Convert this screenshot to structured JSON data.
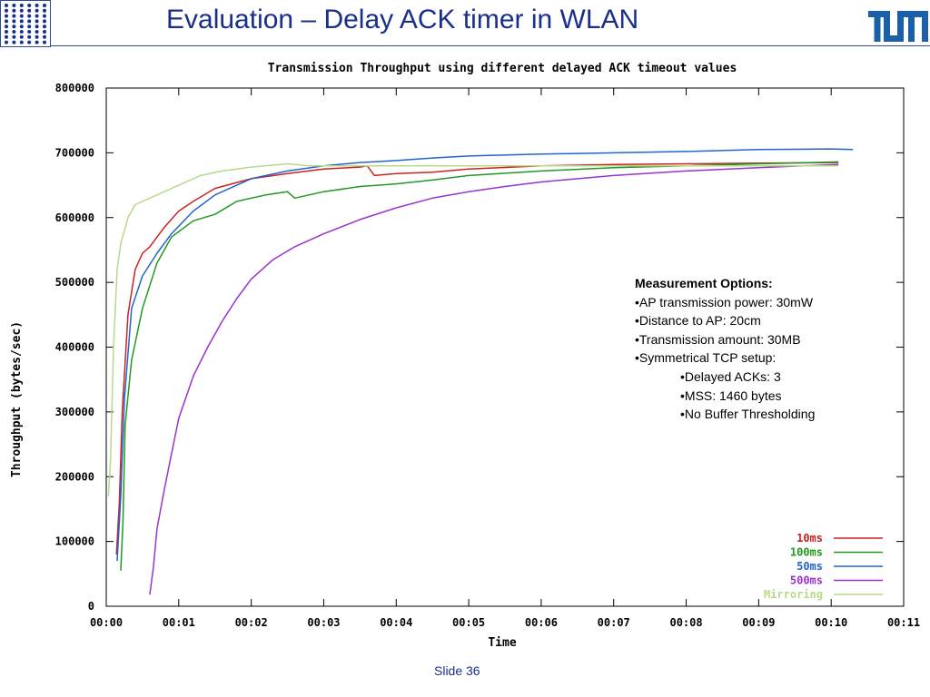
{
  "slide": {
    "title": "Evaluation – Delay ACK timer in WLAN",
    "slide_number": "Slide 36",
    "logo_left_icon": "dot-grid-logo-icon",
    "logo_right_icon": "tum-logo-icon",
    "accent_color": "#1a2f8a"
  },
  "info_box": {
    "heading": "Measurement Options:",
    "items": [
      "•AP transmission power: 30mW",
      "•Distance to AP: 20cm",
      "•Transmission amount: 30MB",
      "•Symmetrical TCP setup:"
    ],
    "subitems": [
      "•Delayed ACKs: 3",
      "•MSS: 1460 bytes",
      "•No Buffer Thresholding"
    ]
  },
  "chart_data": {
    "type": "line",
    "title": "Transmission Throughput using different delayed ACK timeout values",
    "xlabel": "Time",
    "ylabel": "Throughput (bytes/sec)",
    "xlim": [
      0,
      11
    ],
    "ylim": [
      0,
      800000
    ],
    "x_ticks": [
      "00:00",
      "00:01",
      "00:02",
      "00:03",
      "00:04",
      "00:05",
      "00:06",
      "00:07",
      "00:08",
      "00:09",
      "00:10",
      "00:11"
    ],
    "y_ticks": [
      "0",
      "100000",
      "200000",
      "300000",
      "400000",
      "500000",
      "600000",
      "700000",
      "800000"
    ],
    "x_unit": "minutes",
    "legend_position": "bottom-right",
    "grid": false,
    "series": [
      {
        "name": "10ms",
        "color": "#cc2222",
        "points": [
          [
            0.14,
            80000
          ],
          [
            0.18,
            160000
          ],
          [
            0.22,
            300000
          ],
          [
            0.3,
            450000
          ],
          [
            0.4,
            520000
          ],
          [
            0.5,
            545000
          ],
          [
            0.6,
            555000
          ],
          [
            0.8,
            585000
          ],
          [
            1.0,
            610000
          ],
          [
            1.2,
            625000
          ],
          [
            1.5,
            645000
          ],
          [
            2.0,
            660000
          ],
          [
            2.5,
            668000
          ],
          [
            3.0,
            675000
          ],
          [
            3.5,
            678000
          ],
          [
            3.6,
            680000
          ],
          [
            3.7,
            665000
          ],
          [
            4.0,
            668000
          ],
          [
            4.5,
            670000
          ],
          [
            5.0,
            675000
          ],
          [
            6.0,
            680000
          ],
          [
            7.0,
            682000
          ],
          [
            8.0,
            683000
          ],
          [
            9.0,
            684000
          ],
          [
            10.1,
            685000
          ]
        ]
      },
      {
        "name": "100ms",
        "color": "#229922",
        "points": [
          [
            0.2,
            55000
          ],
          [
            0.23,
            130000
          ],
          [
            0.26,
            280000
          ],
          [
            0.35,
            380000
          ],
          [
            0.5,
            460000
          ],
          [
            0.7,
            530000
          ],
          [
            0.9,
            570000
          ],
          [
            1.2,
            595000
          ],
          [
            1.5,
            605000
          ],
          [
            1.8,
            625000
          ],
          [
            2.2,
            635000
          ],
          [
            2.5,
            640000
          ],
          [
            2.6,
            630000
          ],
          [
            3.0,
            640000
          ],
          [
            3.5,
            648000
          ],
          [
            4.0,
            652000
          ],
          [
            4.5,
            658000
          ],
          [
            5.0,
            665000
          ],
          [
            6.0,
            672000
          ],
          [
            7.0,
            677000
          ],
          [
            8.0,
            680000
          ],
          [
            9.0,
            683000
          ],
          [
            10.1,
            686000
          ]
        ]
      },
      {
        "name": "50ms",
        "color": "#2266cc",
        "points": [
          [
            0.15,
            70000
          ],
          [
            0.2,
            170000
          ],
          [
            0.25,
            320000
          ],
          [
            0.35,
            460000
          ],
          [
            0.5,
            510000
          ],
          [
            0.7,
            545000
          ],
          [
            0.9,
            575000
          ],
          [
            1.2,
            610000
          ],
          [
            1.5,
            635000
          ],
          [
            2.0,
            660000
          ],
          [
            2.5,
            672000
          ],
          [
            3.0,
            680000
          ],
          [
            3.5,
            685000
          ],
          [
            4.0,
            688000
          ],
          [
            4.5,
            692000
          ],
          [
            5.0,
            695000
          ],
          [
            6.0,
            698000
          ],
          [
            7.0,
            700000
          ],
          [
            8.0,
            702000
          ],
          [
            9.0,
            705000
          ],
          [
            10.0,
            706000
          ],
          [
            10.3,
            705000
          ]
        ]
      },
      {
        "name": "500ms",
        "color": "#9933cc",
        "points": [
          [
            0.6,
            18000
          ],
          [
            0.65,
            60000
          ],
          [
            0.7,
            120000
          ],
          [
            0.8,
            180000
          ],
          [
            0.9,
            235000
          ],
          [
            1.0,
            290000
          ],
          [
            1.2,
            355000
          ],
          [
            1.4,
            400000
          ],
          [
            1.6,
            440000
          ],
          [
            1.8,
            475000
          ],
          [
            2.0,
            505000
          ],
          [
            2.3,
            535000
          ],
          [
            2.6,
            555000
          ],
          [
            3.0,
            575000
          ],
          [
            3.5,
            597000
          ],
          [
            4.0,
            615000
          ],
          [
            4.5,
            630000
          ],
          [
            5.0,
            640000
          ],
          [
            5.5,
            648000
          ],
          [
            6.0,
            655000
          ],
          [
            7.0,
            665000
          ],
          [
            8.0,
            672000
          ],
          [
            9.0,
            677000
          ],
          [
            10.1,
            682000
          ]
        ]
      },
      {
        "name": "Mirroring",
        "color": "#b8d98a",
        "points": [
          [
            0.03,
            170000
          ],
          [
            0.06,
            230000
          ],
          [
            0.1,
            400000
          ],
          [
            0.15,
            520000
          ],
          [
            0.2,
            560000
          ],
          [
            0.3,
            600000
          ],
          [
            0.4,
            620000
          ],
          [
            0.6,
            630000
          ],
          [
            0.8,
            640000
          ],
          [
            1.0,
            650000
          ],
          [
            1.3,
            665000
          ],
          [
            1.6,
            672000
          ],
          [
            2.0,
            678000
          ],
          [
            2.5,
            683000
          ],
          [
            2.8,
            680000
          ],
          [
            3.0,
            680000
          ],
          [
            4.0,
            680000
          ],
          [
            5.0,
            680000
          ],
          [
            6.0,
            680000
          ],
          [
            7.0,
            680000
          ],
          [
            8.0,
            680000
          ],
          [
            9.0,
            680000
          ],
          [
            10.1,
            680000
          ]
        ]
      }
    ]
  }
}
